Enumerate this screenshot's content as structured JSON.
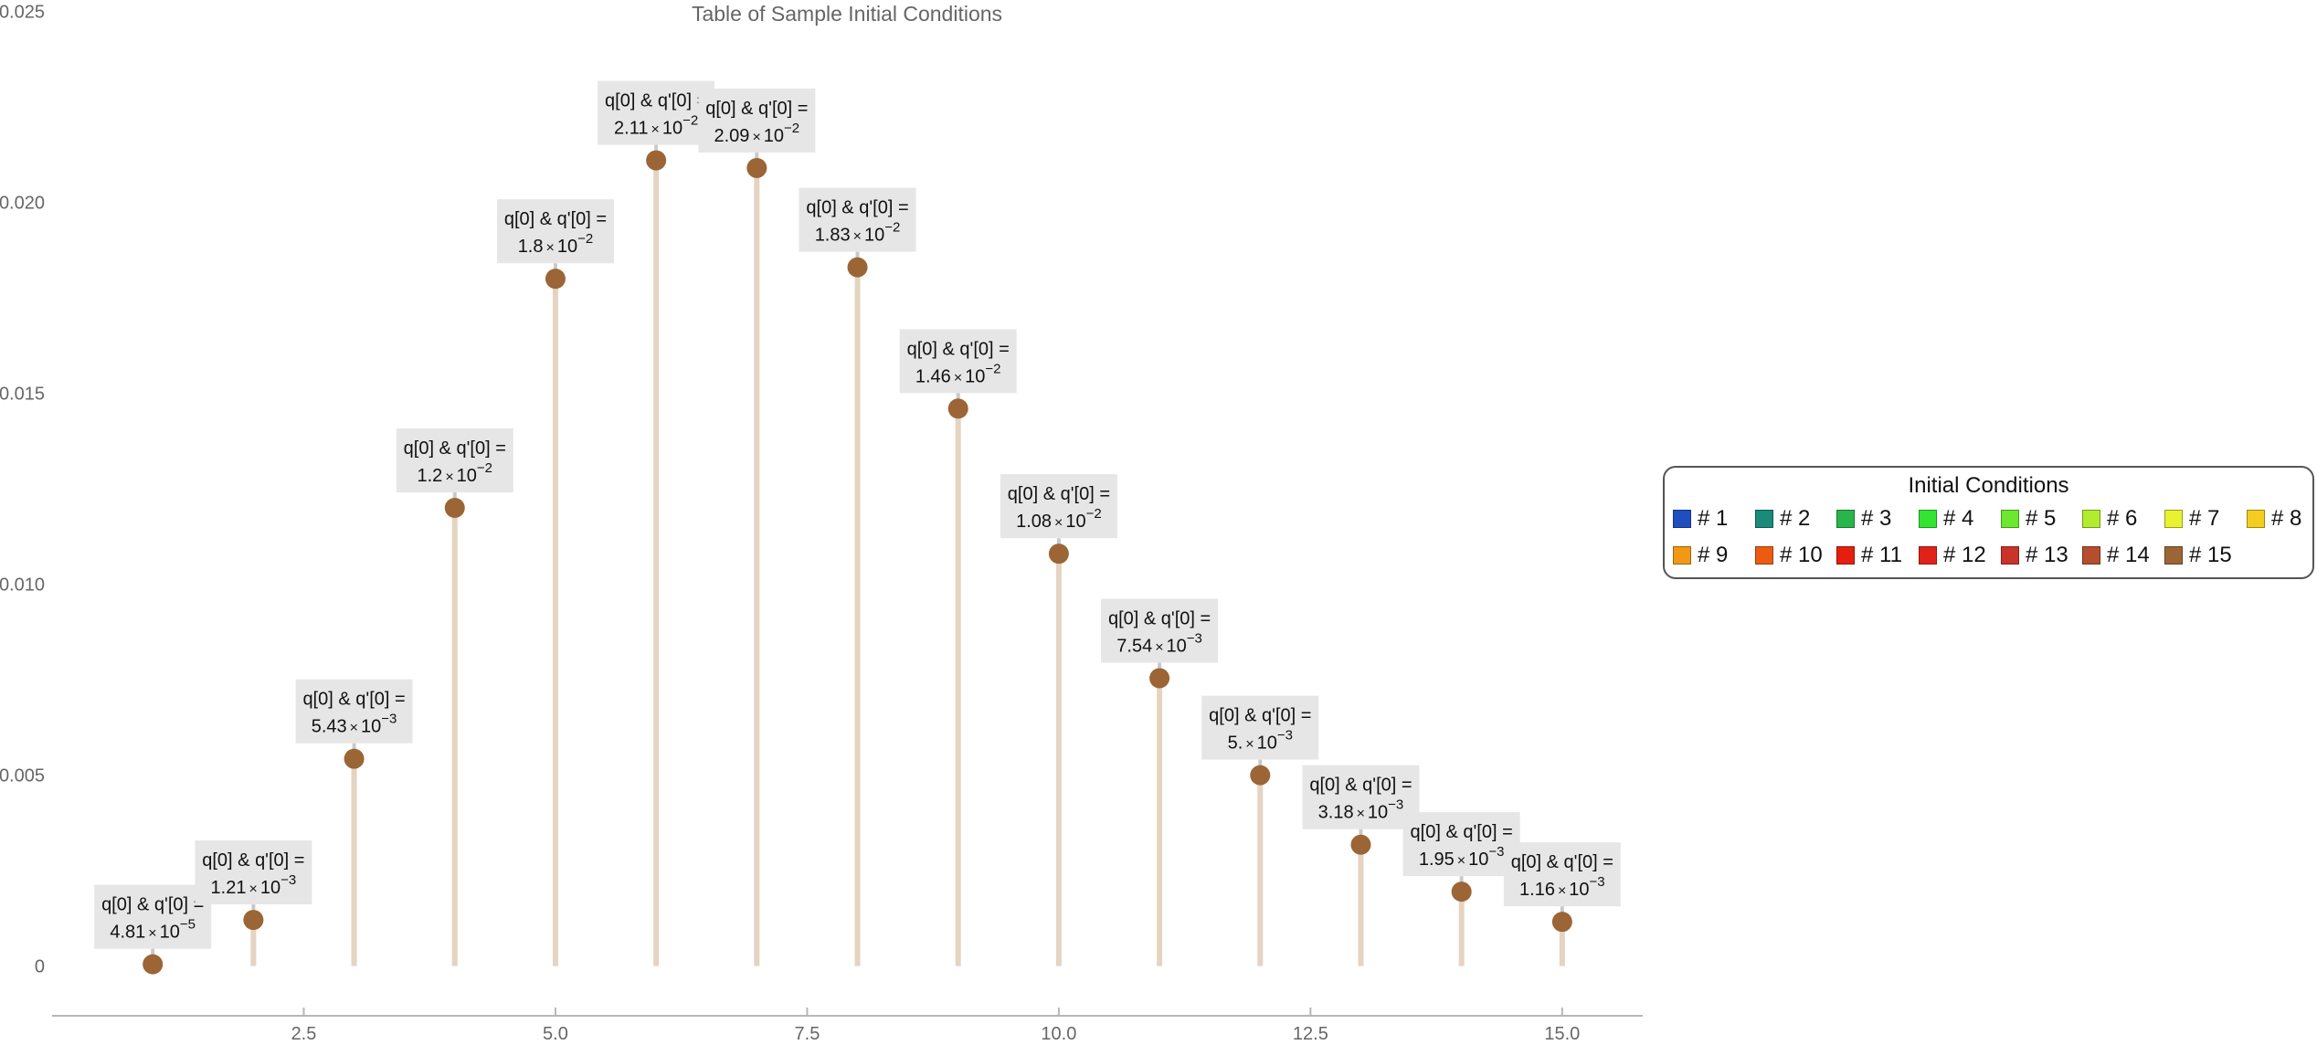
{
  "chart_data": {
    "type": "stem",
    "title": "Table of Sample Initial Conditions",
    "xlabel": "",
    "ylabel": "",
    "xlim": [
      0.0,
      15.8
    ],
    "ylim": [
      -0.0013,
      0.0253
    ],
    "x_ticks": [
      {
        "value": 2.5,
        "label": "2.5"
      },
      {
        "value": 5.0,
        "label": "5.0"
      },
      {
        "value": 7.5,
        "label": "7.5"
      },
      {
        "value": 10.0,
        "label": "10.0"
      },
      {
        "value": 12.5,
        "label": "12.5"
      },
      {
        "value": 15.0,
        "label": "15.0"
      }
    ],
    "y_ticks": [
      {
        "value": 0,
        "label": "0"
      },
      {
        "value": 0.005,
        "label": "0.005"
      },
      {
        "value": 0.01,
        "label": "0.010"
      },
      {
        "value": 0.015,
        "label": "0.015"
      },
      {
        "value": 0.02,
        "label": "0.020"
      },
      {
        "value": 0.025,
        "label": "0.025"
      }
    ],
    "label_prefix": "q[0] & q'[0] =",
    "label_times": "×",
    "label_base": "10",
    "points": [
      {
        "x": 1,
        "y": 4.81e-05,
        "mantissa": "4.81",
        "exponent": "−5"
      },
      {
        "x": 2,
        "y": 0.00121,
        "mantissa": "1.21",
        "exponent": "−3"
      },
      {
        "x": 3,
        "y": 0.00543,
        "mantissa": "5.43",
        "exponent": "−3"
      },
      {
        "x": 4,
        "y": 0.012,
        "mantissa": "1.2",
        "exponent": "−2"
      },
      {
        "x": 5,
        "y": 0.018,
        "mantissa": "1.8",
        "exponent": "−2"
      },
      {
        "x": 6,
        "y": 0.0211,
        "mantissa": "2.11",
        "exponent": "−2"
      },
      {
        "x": 7,
        "y": 0.0209,
        "mantissa": "2.09",
        "exponent": "−2"
      },
      {
        "x": 8,
        "y": 0.0183,
        "mantissa": "1.83",
        "exponent": "−2"
      },
      {
        "x": 9,
        "y": 0.0146,
        "mantissa": "1.46",
        "exponent": "−2"
      },
      {
        "x": 10,
        "y": 0.0108,
        "mantissa": "1.08",
        "exponent": "−2"
      },
      {
        "x": 11,
        "y": 0.00754,
        "mantissa": "7.54",
        "exponent": "−3"
      },
      {
        "x": 12,
        "y": 0.005,
        "mantissa": "5.",
        "exponent": "−3"
      },
      {
        "x": 13,
        "y": 0.00318,
        "mantissa": "3.18",
        "exponent": "−3"
      },
      {
        "x": 14,
        "y": 0.00195,
        "mantissa": "1.95",
        "exponent": "−3"
      },
      {
        "x": 15,
        "y": 0.00116,
        "mantissa": "1.16",
        "exponent": "−3"
      }
    ],
    "colors": {
      "point": "#9b6536",
      "stem": "#e4d4c1",
      "axis": "#b7b7b7",
      "tick_text": "#666666",
      "title_text": "#666666",
      "label_bg": "#e6e6e6",
      "label_text": "#111111"
    },
    "legend": {
      "title": "Initial Conditions",
      "items": [
        {
          "label": "# 1",
          "color": "#1f4fbf"
        },
        {
          "label": "# 2",
          "color": "#1a8a7a"
        },
        {
          "label": "# 3",
          "color": "#28b64b"
        },
        {
          "label": "# 4",
          "color": "#33e433"
        },
        {
          "label": "# 5",
          "color": "#6ce82e"
        },
        {
          "label": "# 6",
          "color": "#b2ec2f"
        },
        {
          "label": "# 7",
          "color": "#e9f22f"
        },
        {
          "label": "# 8",
          "color": "#f5cd1f"
        },
        {
          "label": "# 9",
          "color": "#f19816"
        },
        {
          "label": "# 10",
          "color": "#ec5c10"
        },
        {
          "label": "# 11",
          "color": "#e51e0f"
        },
        {
          "label": "# 12",
          "color": "#e0221a"
        },
        {
          "label": "# 13",
          "color": "#c8342a"
        },
        {
          "label": "# 14",
          "color": "#b44e2f"
        },
        {
          "label": "# 15",
          "color": "#9b6536"
        }
      ]
    }
  }
}
